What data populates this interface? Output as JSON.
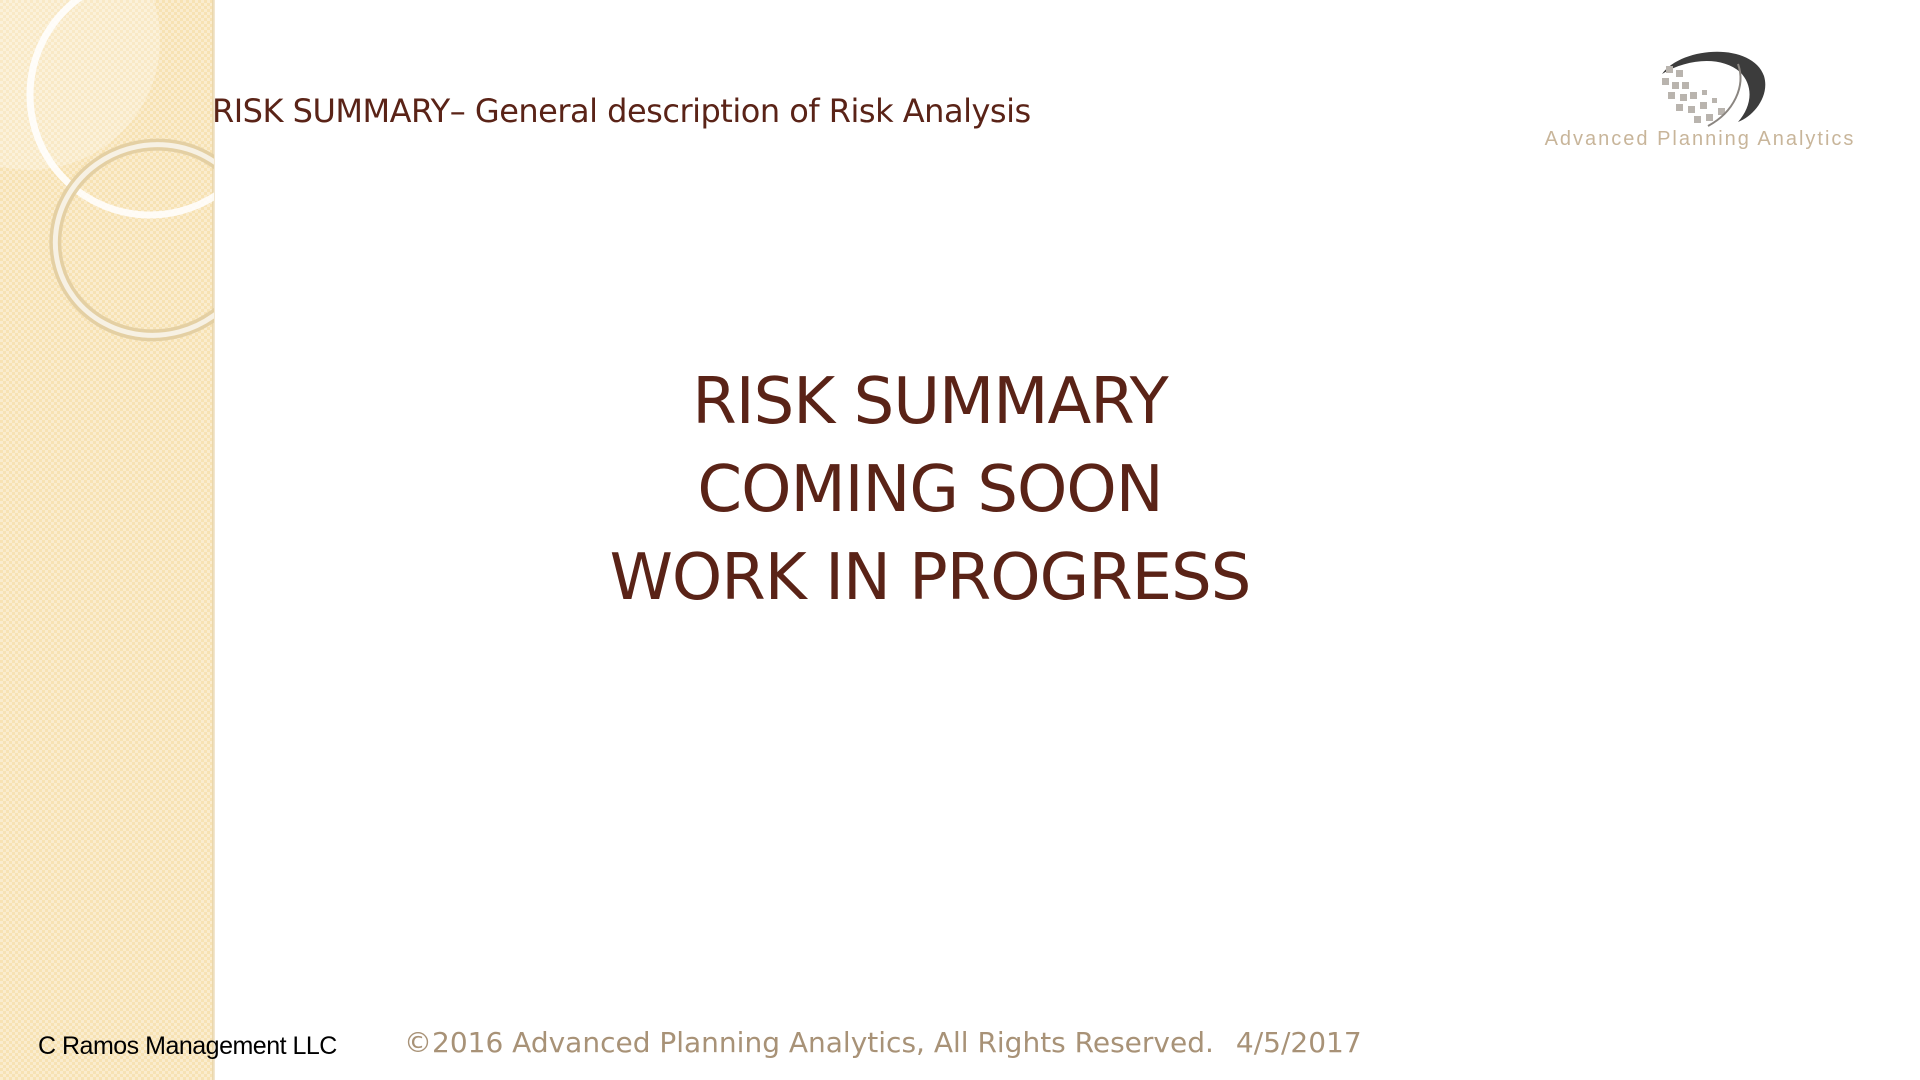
{
  "slide": {
    "title": "RISK SUMMARY– General description of Risk Analysis",
    "main_message": [
      "RISK SUMMARY",
      "COMING SOON",
      "WORK IN PROGRESS"
    ]
  },
  "logo": {
    "text": "Advanced Planning Analytics"
  },
  "footer": {
    "company": "C Ramos Management LLC",
    "copyright": "©2016 Advanced Planning Analytics, All Rights Reserved.",
    "date": "4/5/2017"
  },
  "colors": {
    "title": "#5a2317",
    "band": "#f7e2b3",
    "footer_text": "#a89277"
  },
  "icons": [
    "logo-mark-icon"
  ]
}
